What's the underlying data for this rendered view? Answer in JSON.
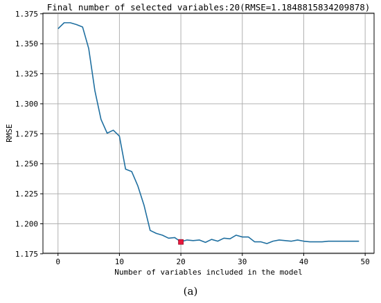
{
  "caption": "(a)",
  "chart_data": {
    "type": "line",
    "title": "Final number of selected variables:20(RMSE=1.1848815834209878)",
    "xlabel": "Number of variables included in the model",
    "ylabel": "RMSE",
    "xlim": [
      -2.45,
      51.45
    ],
    "ylim": [
      1.1755,
      1.3755
    ],
    "xticks": [
      0,
      10,
      20,
      30,
      40,
      50
    ],
    "yticks": [
      1.175,
      1.2,
      1.225,
      1.25,
      1.275,
      1.3,
      1.325,
      1.35,
      1.375
    ],
    "ytick_labels": [
      "1.175",
      "1.200",
      "1.225",
      "1.250",
      "1.275",
      "1.300",
      "1.325",
      "1.350",
      "1.375"
    ],
    "grid": true,
    "line_color": "#1f6fa0",
    "marker_color": "#e8183c",
    "x": [
      0,
      1,
      2,
      3,
      4,
      5,
      6,
      7,
      8,
      9,
      10,
      11,
      12,
      13,
      14,
      15,
      16,
      17,
      18,
      19,
      20,
      21,
      22,
      23,
      24,
      25,
      26,
      27,
      28,
      29,
      30,
      31,
      32,
      33,
      34,
      35,
      36,
      37,
      38,
      39,
      40,
      41,
      42,
      43,
      44,
      45,
      46,
      47,
      48,
      49
    ],
    "y": [
      1.3625,
      1.3675,
      1.3675,
      1.366,
      1.364,
      1.346,
      1.311,
      1.287,
      1.2755,
      1.278,
      1.273,
      1.2455,
      1.2435,
      1.2315,
      1.2155,
      1.1945,
      1.192,
      1.1905,
      1.188,
      1.1885,
      1.185,
      1.1865,
      1.186,
      1.1865,
      1.1845,
      1.187,
      1.1855,
      1.188,
      1.1875,
      1.1905,
      1.189,
      1.189,
      1.185,
      1.185,
      1.1835,
      1.1855,
      1.1865,
      1.186,
      1.1855,
      1.1865,
      1.1855,
      1.185,
      1.185,
      1.185,
      1.1855,
      1.1855,
      1.1855,
      1.1855,
      1.1855,
      1.1855
    ],
    "selected_point": {
      "x": 20,
      "y": 1.1848815834209878
    }
  }
}
